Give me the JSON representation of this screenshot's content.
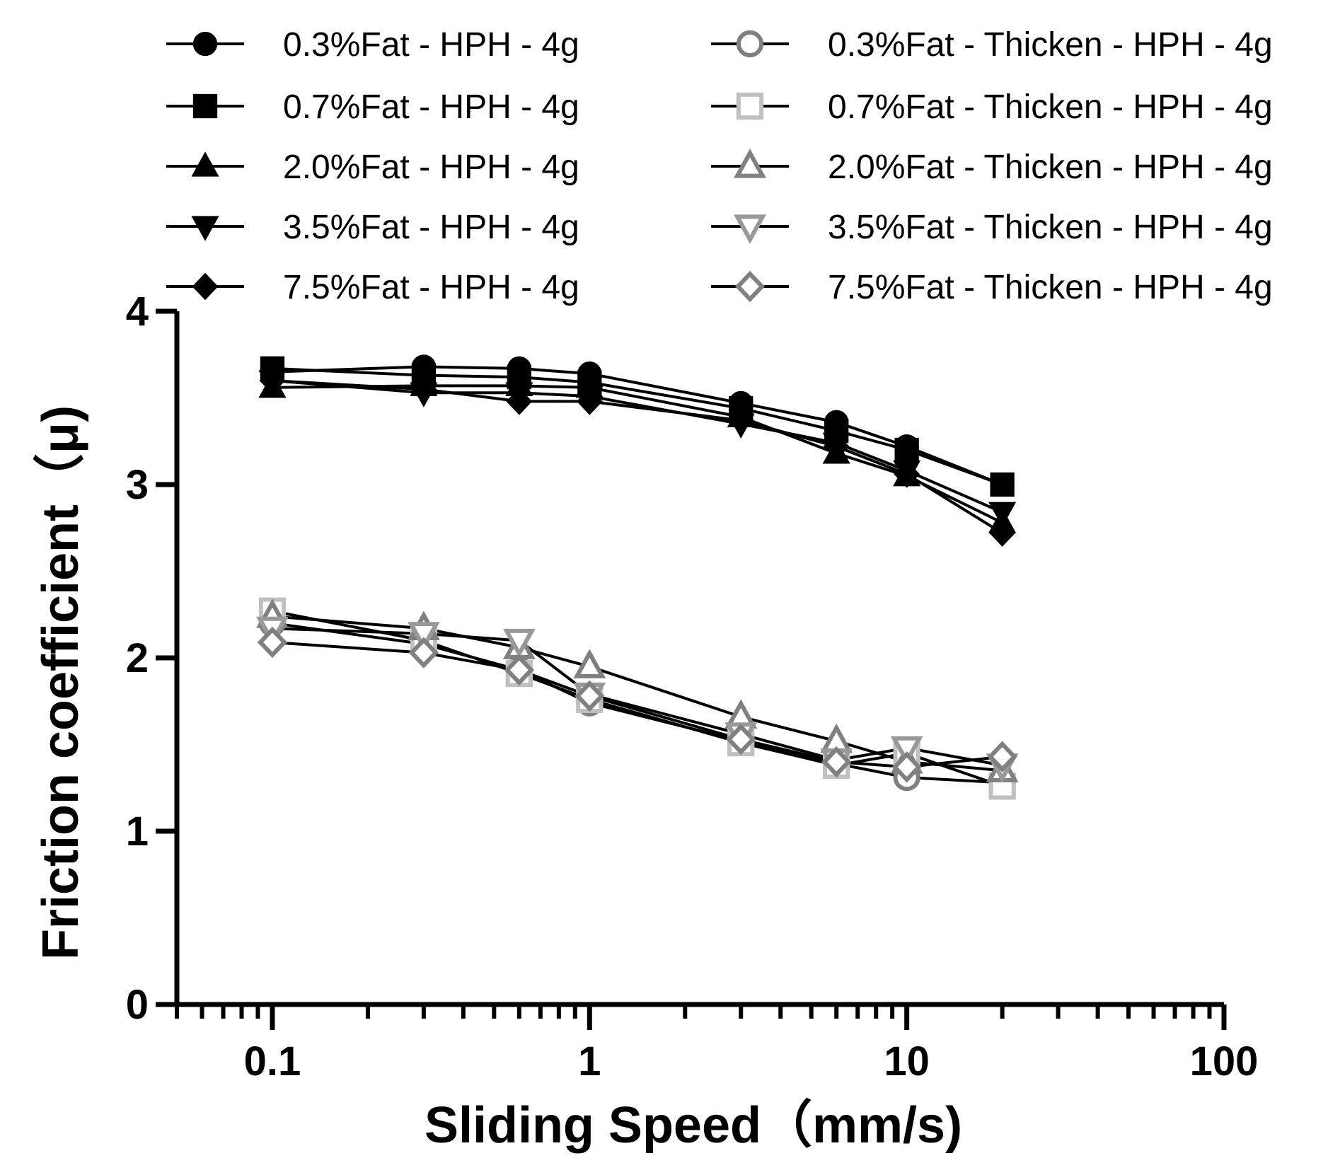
{
  "chart_data": {
    "type": "line",
    "xlabel": "Sliding Speed（mm/s)",
    "ylabel": "Friction coefficient（μ)",
    "x_scale": "log",
    "xlim": [
      0.05,
      100
    ],
    "ylim": [
      0,
      4
    ],
    "x_ticks": [
      {
        "value": 0.1,
        "label": "0.1"
      },
      {
        "value": 1,
        "label": "1"
      },
      {
        "value": 10,
        "label": "10"
      },
      {
        "value": 100,
        "label": "100"
      }
    ],
    "y_ticks": [
      {
        "value": 0,
        "label": "0"
      },
      {
        "value": 1,
        "label": "1"
      },
      {
        "value": 2,
        "label": "2"
      },
      {
        "value": 3,
        "label": "3"
      },
      {
        "value": 4,
        "label": "4"
      }
    ],
    "grid": false,
    "legend_position": "top",
    "x": [
      0.1,
      0.3,
      0.6,
      1,
      3,
      6,
      10,
      20
    ],
    "series": [
      {
        "name": "0.3%Fat - HPH - 4g",
        "marker": "circle",
        "filled": true,
        "color": "#000000",
        "values": [
          3.65,
          3.68,
          3.67,
          3.64,
          3.47,
          3.36,
          3.22,
          3.0
        ]
      },
      {
        "name": "0.7%Fat - HPH - 4g",
        "marker": "square",
        "filled": true,
        "color": "#000000",
        "values": [
          3.67,
          3.63,
          3.62,
          3.59,
          3.44,
          3.31,
          3.2,
          3.0
        ]
      },
      {
        "name": "2.0%Fat - HPH - 4g",
        "marker": "triangle-up",
        "filled": true,
        "color": "#000000",
        "values": [
          3.56,
          3.57,
          3.57,
          3.56,
          3.39,
          3.18,
          3.05,
          2.78
        ]
      },
      {
        "name": "3.5%Fat - HPH - 4g",
        "marker": "triangle-down",
        "filled": true,
        "color": "#000000",
        "values": [
          3.6,
          3.53,
          3.53,
          3.51,
          3.35,
          3.24,
          3.08,
          2.84
        ]
      },
      {
        "name": "7.5%Fat - HPH - 4g",
        "marker": "diamond",
        "filled": true,
        "color": "#000000",
        "values": [
          3.6,
          3.55,
          3.48,
          3.48,
          3.37,
          3.22,
          3.06,
          2.72
        ]
      },
      {
        "name": "0.3%Fat - Thicken - HPH - 4g",
        "marker": "circle",
        "filled": false,
        "color": "#808080",
        "values": [
          2.2,
          2.08,
          1.93,
          1.74,
          1.52,
          1.39,
          1.31,
          1.28
        ]
      },
      {
        "name": "0.7%Fat - Thicken - HPH - 4g",
        "marker": "square",
        "filled": false,
        "color": "#c0c0c0",
        "values": [
          2.27,
          2.1,
          1.91,
          1.76,
          1.51,
          1.38,
          1.45,
          1.26
        ]
      },
      {
        "name": "2.0%Fat - Thicken - HPH - 4g",
        "marker": "triangle-up",
        "filled": false,
        "color": "#808080",
        "values": [
          2.24,
          2.17,
          2.06,
          1.95,
          1.66,
          1.52,
          1.4,
          1.35
        ]
      },
      {
        "name": "3.5%Fat - Thicken - HPH - 4g",
        "marker": "triangle-down",
        "filled": false,
        "color": "#999999",
        "values": [
          2.17,
          2.14,
          2.1,
          1.79,
          1.56,
          1.41,
          1.48,
          1.38
        ]
      },
      {
        "name": "7.5%Fat - Thicken - HPH - 4g",
        "marker": "diamond",
        "filled": false,
        "color": "#808080",
        "values": [
          2.09,
          2.03,
          1.93,
          1.78,
          1.53,
          1.4,
          1.37,
          1.43
        ]
      }
    ]
  }
}
